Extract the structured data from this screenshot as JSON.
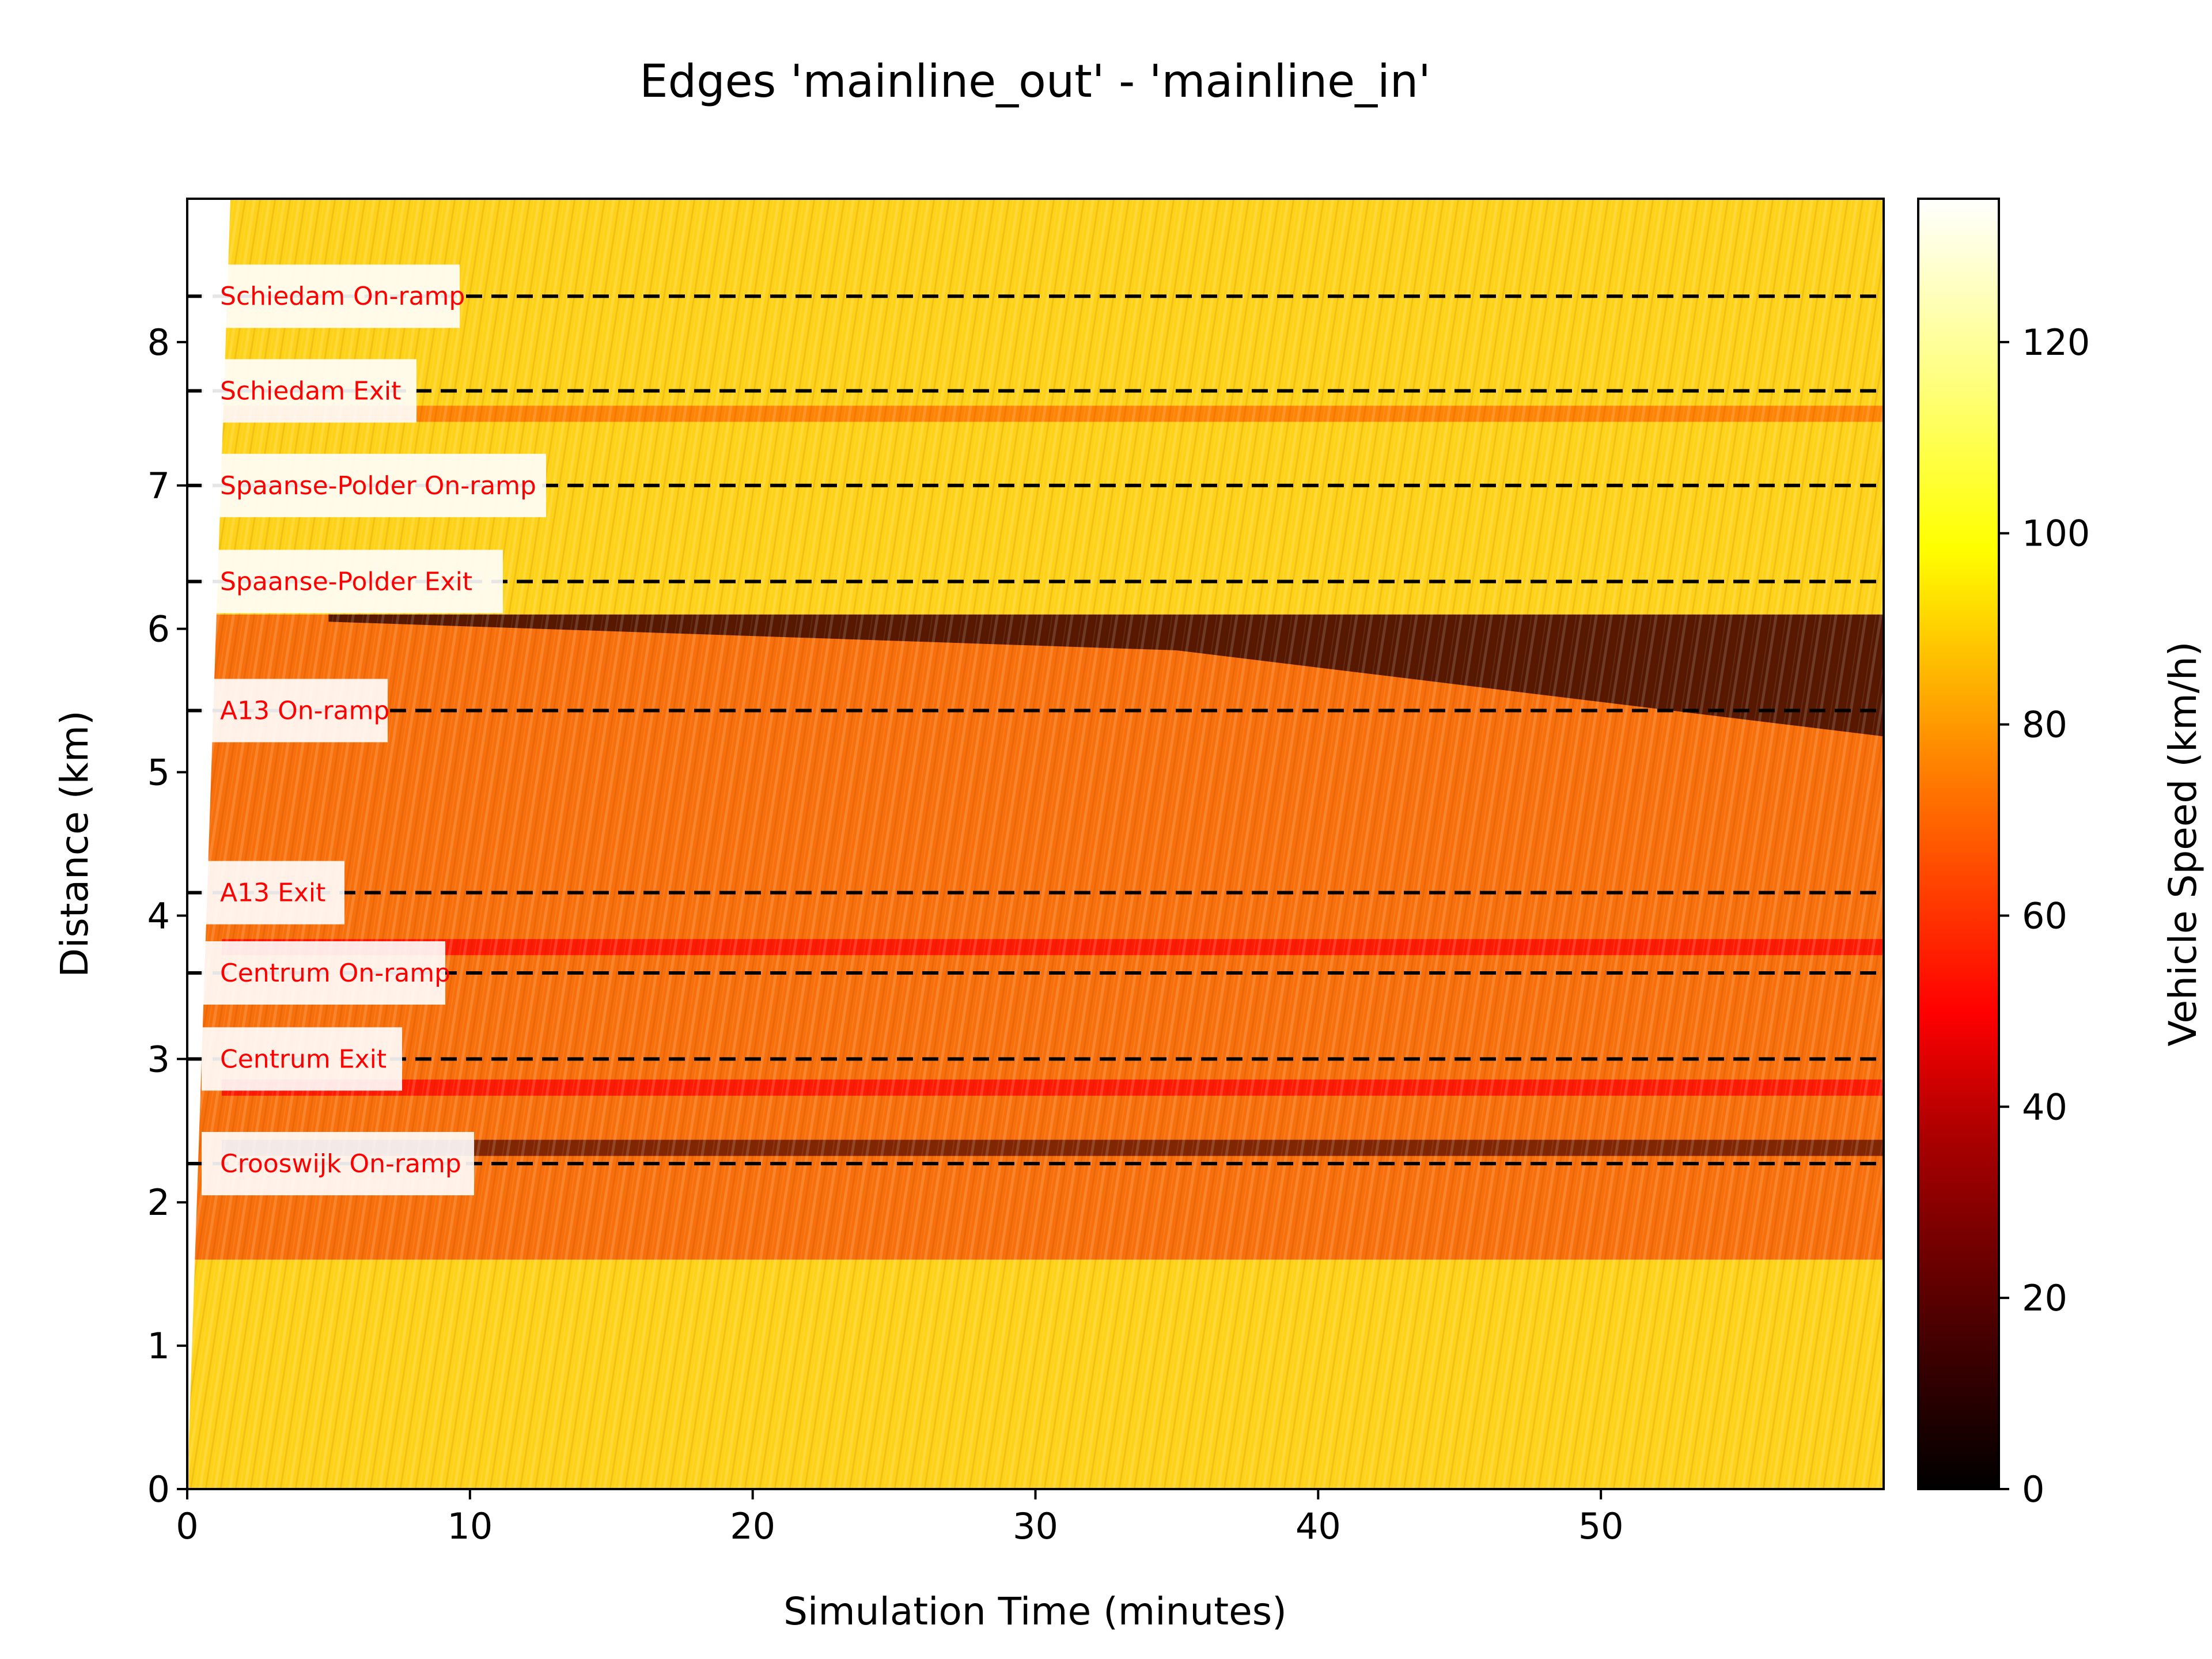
{
  "chart_data": {
    "type": "heatmap",
    "title": "Edges 'mainline_out' - 'mainline_in'",
    "xlabel": "Simulation Time (minutes)",
    "ylabel": "Distance (km)",
    "xlim": [
      0,
      60
    ],
    "ylim": [
      0,
      9
    ],
    "xticks": [
      "0",
      "10",
      "20",
      "30",
      "40",
      "50"
    ],
    "yticks": [
      "0",
      "1",
      "2",
      "3",
      "4",
      "5",
      "6",
      "7",
      "8"
    ],
    "colorbar": {
      "label": "Vehicle Speed (km/h)",
      "range": [
        0,
        135
      ],
      "ticks": [
        "0",
        "20",
        "40",
        "60",
        "80",
        "100",
        "120"
      ],
      "colormap": "hot",
      "colors": [
        "#000000",
        "#8b0000",
        "#ff0000",
        "#ff6a00",
        "#ffb000",
        "#ffff00",
        "#ffffff"
      ]
    },
    "ramps": [
      {
        "label": "Crooswijk On-ramp",
        "distance_km": 2.27
      },
      {
        "label": "Centrum Exit",
        "distance_km": 3.0
      },
      {
        "label": "Centrum On-ramp",
        "distance_km": 3.6
      },
      {
        "label": "A13 Exit",
        "distance_km": 4.16
      },
      {
        "label": "A13 On-ramp",
        "distance_km": 5.43
      },
      {
        "label": "Spaanse-Polder Exit",
        "distance_km": 6.33
      },
      {
        "label": "Spaanse-Polder On-ramp",
        "distance_km": 7.0
      },
      {
        "label": "Schiedam Exit",
        "distance_km": 7.66
      },
      {
        "label": "Schiedam On-ramp",
        "distance_km": 8.32
      }
    ],
    "speed_regions": [
      {
        "from_km": 0,
        "to_km": 1.6,
        "speed_kmh": 98
      },
      {
        "from_km": 1.6,
        "to_km": 6.1,
        "speed_kmh": 75
      },
      {
        "from_km": 6.1,
        "to_km": 9,
        "speed_kmh": 100
      }
    ],
    "congestion_bands": [
      {
        "center_km": 2.38,
        "speed_kmh": 25
      },
      {
        "center_km": 2.8,
        "speed_kmh": 45
      },
      {
        "center_km": 3.78,
        "speed_kmh": 55
      },
      {
        "center_km": 7.5,
        "speed_kmh": 65
      }
    ],
    "bottleneck": {
      "speed_kmh": 15,
      "start_time_min": 5,
      "tail_km": [
        {
          "t": 5,
          "km": 6.05
        },
        {
          "t": 35,
          "km": 5.85
        },
        {
          "t": 60,
          "km": 5.25
        }
      ]
    }
  }
}
